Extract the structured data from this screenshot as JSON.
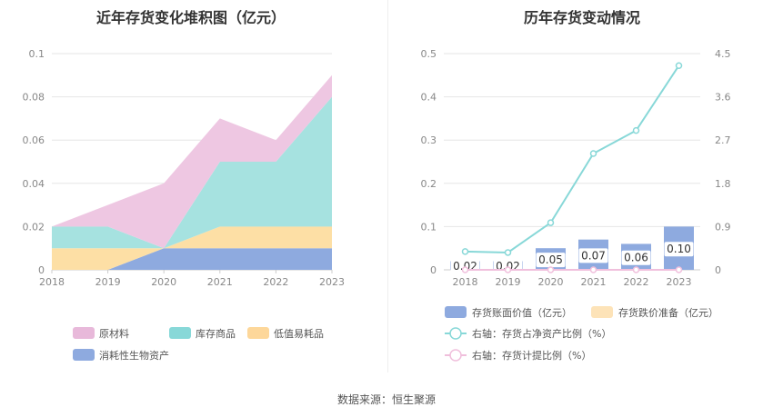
{
  "source": "数据来源：恒生聚源",
  "chart_data": [
    {
      "type": "area",
      "stacked": true,
      "title": "近年存货变化堆积图（亿元）",
      "x": [
        "2018",
        "2019",
        "2020",
        "2021",
        "2022",
        "2023"
      ],
      "y_ticks": [
        "0",
        "0.02",
        "0.04",
        "0.06",
        "0.08",
        "0.1"
      ],
      "ylim": [
        0,
        0.1
      ],
      "series": [
        {
          "name": "消耗性生物资产",
          "color": "#8eaadf",
          "values": [
            0,
            0,
            0.01,
            0.01,
            0.01,
            0.01
          ]
        },
        {
          "name": "低值易耗品",
          "color": "#fddfa5",
          "values": [
            0.01,
            0.01,
            0,
            0.01,
            0.01,
            0.01
          ]
        },
        {
          "name": "库存商品",
          "color": "#a6e2e0",
          "values": [
            0.01,
            0.01,
            0,
            0.03,
            0.03,
            0.06
          ]
        },
        {
          "name": "原材料",
          "color": "#eec7e2",
          "values": [
            0,
            0.01,
            0.03,
            0.02,
            0.01,
            0.01
          ]
        }
      ],
      "legend": [
        "原材料",
        "库存商品",
        "低值易耗品",
        "消耗性生物资产"
      ],
      "legend_colors": [
        "#e8b9da",
        "#88d8d8",
        "#fdd79a",
        "#8eaadf"
      ],
      "legend_position": "bottom",
      "grid": true
    },
    {
      "type": "bar+line",
      "title": "历年存货变动情况",
      "x": [
        "2018",
        "2019",
        "2020",
        "2021",
        "2022",
        "2023"
      ],
      "y_left_ticks": [
        "0",
        "0.1",
        "0.2",
        "0.3",
        "0.4",
        "0.5"
      ],
      "y_right_ticks": [
        "0",
        "0.9",
        "1.8",
        "2.7",
        "3.6",
        "4.5"
      ],
      "ylim_left": [
        0,
        0.5
      ],
      "ylim_right": [
        0,
        4.5
      ],
      "series": [
        {
          "name": "存货账面价值（亿元）",
          "kind": "bar",
          "axis": "left",
          "color": "#8eaadf",
          "values": [
            0.02,
            0.02,
            0.05,
            0.07,
            0.06,
            0.1
          ],
          "labels": [
            "0.02",
            "0.02",
            "0.05",
            "0.07",
            "0.06",
            "0.10"
          ]
        },
        {
          "name": "存货跌价准备（亿元）",
          "kind": "bar",
          "axis": "left",
          "color": "#fde3b8",
          "values": [
            0,
            0,
            0,
            0,
            0,
            0
          ]
        },
        {
          "name": "右轴：存货占净资产比例（%）",
          "kind": "line",
          "axis": "right",
          "color": "#88d8d8",
          "values": [
            0.38,
            0.36,
            0.98,
            2.42,
            2.9,
            4.25
          ]
        },
        {
          "name": "右轴：存货计提比例（%）",
          "kind": "line",
          "axis": "right",
          "color": "#f0bfdc",
          "values": [
            0,
            0,
            0,
            0,
            0,
            0
          ]
        }
      ],
      "legend_position": "bottom",
      "grid": true
    }
  ]
}
